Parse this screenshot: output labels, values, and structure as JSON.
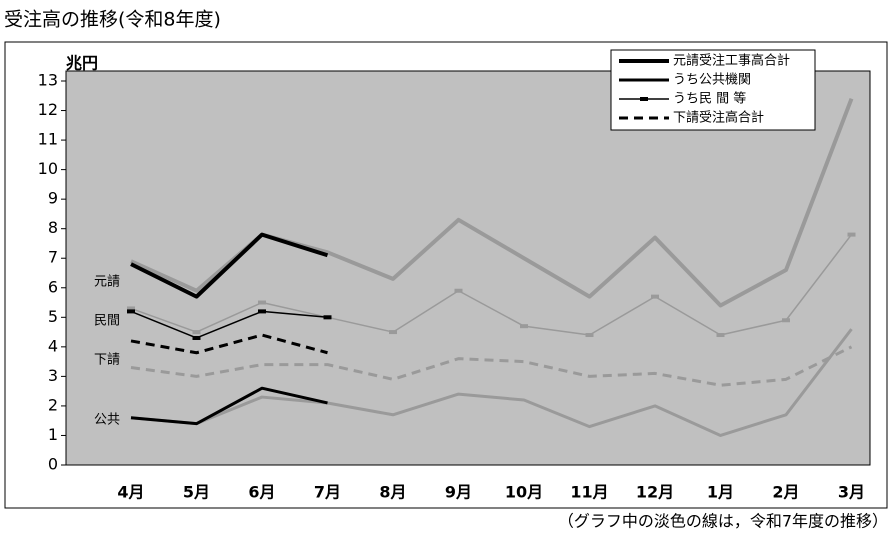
{
  "chart_data": {
    "type": "line",
    "title": "受注高の推移(令和8年度)",
    "y_label": "兆円",
    "note": "（グラフ中の淡色の線は，令和7年度の推移）",
    "categories": [
      "4月",
      "5月",
      "6月",
      "7月",
      "8月",
      "9月",
      "10月",
      "11月",
      "12月",
      "1月",
      "2月",
      "3月"
    ],
    "ylim": [
      0,
      13
    ],
    "yticks": [
      0,
      1,
      2,
      3,
      4,
      5,
      6,
      7,
      8,
      9,
      10,
      11,
      12,
      13
    ],
    "grid": false,
    "legend": "top-right",
    "plot_color": "#c0c0c0",
    "annotations": [
      "元請",
      "民間",
      "下請",
      "公共"
    ],
    "series": [
      {
        "color": "#9a9a9a",
        "width": 4,
        "values": [
          6.9,
          5.9,
          7.8,
          7.2,
          6.3,
          8.3,
          7.0,
          5.7,
          7.7,
          5.4,
          6.6,
          12.4
        ]
      },
      {
        "color": "#9a9a9a",
        "width": 3,
        "values": [
          1.6,
          1.4,
          2.3,
          2.1,
          1.7,
          2.4,
          2.2,
          1.3,
          2.0,
          1.0,
          1.7,
          4.6
        ]
      },
      {
        "color": "#9a9a9a",
        "width": 1.5,
        "marker": true,
        "values": [
          5.3,
          4.5,
          5.5,
          5.0,
          4.5,
          5.9,
          4.7,
          4.4,
          5.7,
          4.4,
          4.9,
          7.8
        ]
      },
      {
        "color": "#9a9a9a",
        "width": 3,
        "dash": true,
        "values": [
          3.3,
          3.0,
          3.4,
          3.4,
          2.9,
          3.6,
          3.5,
          3.0,
          3.1,
          2.7,
          2.9,
          4.0
        ]
      },
      {
        "name": "元請受注工事高合計",
        "color": "#000000",
        "width": 4,
        "values": [
          6.8,
          5.7,
          7.8,
          7.1,
          null,
          null,
          null,
          null,
          null,
          null,
          null,
          null
        ]
      },
      {
        "name": "うち公共機関",
        "color": "#000000",
        "width": 3,
        "values": [
          1.6,
          1.4,
          2.6,
          2.1,
          null,
          null,
          null,
          null,
          null,
          null,
          null,
          null
        ]
      },
      {
        "name": "うち民 間 等",
        "color": "#000000",
        "width": 1.5,
        "marker": true,
        "values": [
          5.2,
          4.3,
          5.2,
          5.0,
          null,
          null,
          null,
          null,
          null,
          null,
          null,
          null
        ]
      },
      {
        "name": "下請受注高合計",
        "color": "#000000",
        "width": 3,
        "dash": true,
        "values": [
          4.2,
          3.8,
          4.4,
          3.8,
          null,
          null,
          null,
          null,
          null,
          null,
          null,
          null
        ]
      }
    ]
  }
}
